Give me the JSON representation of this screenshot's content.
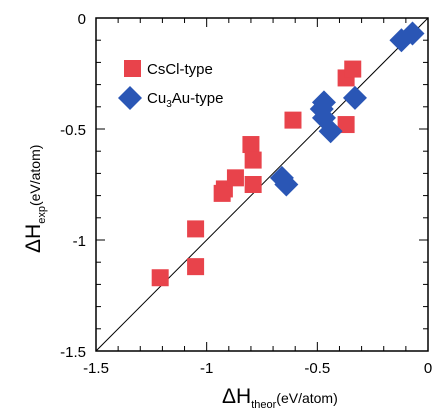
{
  "chart_data": {
    "type": "scatter",
    "xlim": [
      -1.5,
      0
    ],
    "ylim": [
      -1.5,
      0
    ],
    "x_ticks": [
      -1.5,
      -1,
      -0.5,
      0
    ],
    "y_ticks": [
      0,
      -0.5,
      -1,
      -1.5
    ],
    "x_tick_labels": [
      "-1.5",
      "-1",
      "-0.5",
      "0"
    ],
    "y_tick_labels": [
      "0",
      "-0.5",
      "-1",
      "-1.5"
    ],
    "xlabel": {
      "main": "ΔH",
      "sub": "theor",
      "unit": "(eV/atom)"
    },
    "ylabel": {
      "main": "ΔH",
      "sub": "exp",
      "unit": "(eV/atom)"
    },
    "diagonal": {
      "from": [
        -1.5,
        -1.5
      ],
      "to": [
        0,
        0
      ],
      "color": "#000000"
    },
    "grid": false,
    "legend_position": "top-left",
    "series": [
      {
        "name": "CsCl-type",
        "marker": "square",
        "color": "#e8434b",
        "points": [
          [
            -1.21,
            -1.17
          ],
          [
            -1.05,
            -1.12
          ],
          [
            -1.05,
            -0.95
          ],
          [
            -0.93,
            -0.79
          ],
          [
            -0.92,
            -0.77
          ],
          [
            -0.87,
            -0.72
          ],
          [
            -0.79,
            -0.75
          ],
          [
            -0.8,
            -0.57
          ],
          [
            -0.79,
            -0.64
          ],
          [
            -0.61,
            -0.46
          ],
          [
            -0.37,
            -0.48
          ],
          [
            -0.37,
            -0.27
          ],
          [
            -0.34,
            -0.23
          ]
        ]
      },
      {
        "name": "Cu3Au-type",
        "marker": "diamond",
        "color": "#2a56b5",
        "points": [
          [
            -0.66,
            -0.72
          ],
          [
            -0.64,
            -0.75
          ],
          [
            -0.48,
            -0.41
          ],
          [
            -0.47,
            -0.38
          ],
          [
            -0.47,
            -0.45
          ],
          [
            -0.44,
            -0.51
          ],
          [
            -0.33,
            -0.36
          ],
          [
            -0.12,
            -0.1
          ],
          [
            -0.07,
            -0.07
          ]
        ]
      }
    ],
    "legend": [
      {
        "label_main": "CsCl-type",
        "label_sub": ""
      },
      {
        "label_main": "Cu",
        "label_sub": "3",
        "label_tail": "Au-type"
      }
    ]
  }
}
